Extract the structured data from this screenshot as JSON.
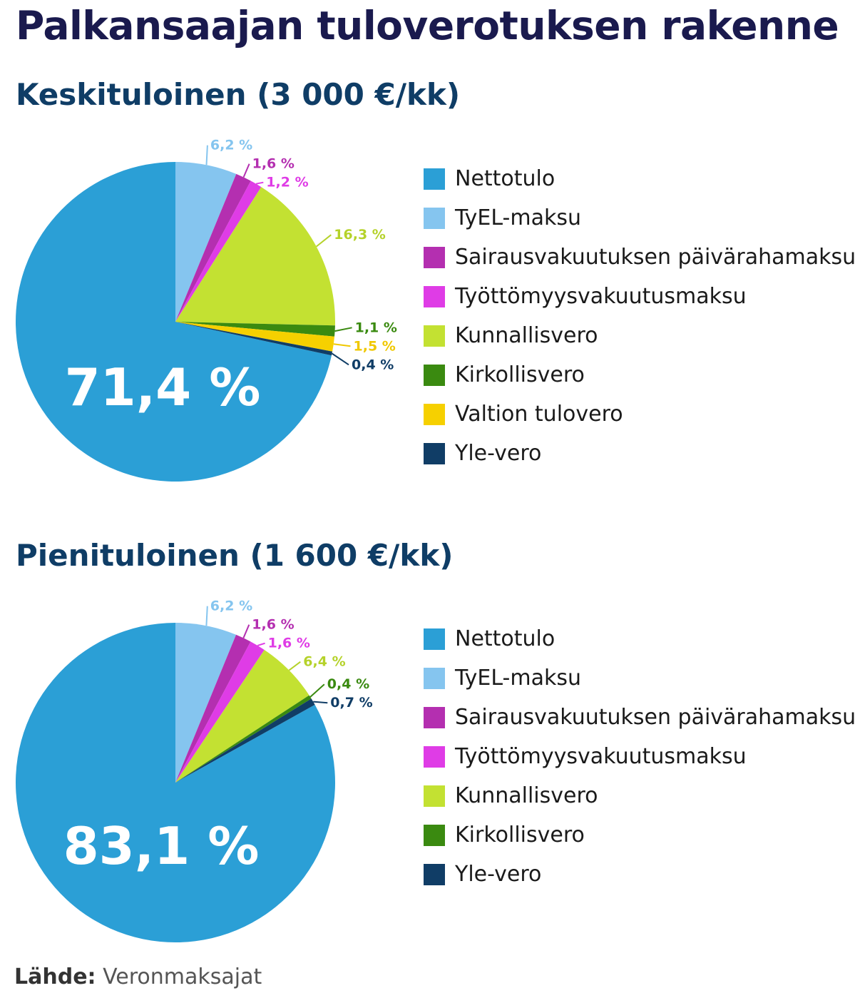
{
  "title": "Palkansaajan tuloverotuksen rakenne",
  "source": {
    "label": "Lähde:",
    "text": "Veronmaksajat"
  },
  "colors": {
    "Nettotulo": "#2b9fd6",
    "TyEL-maksu": "#85c5ef",
    "Sairausvakuutuksen päivärahamaksu": "#b42fb0",
    "Työttömyysvakuutusmaksu": "#df3ce6",
    "Kunnallisvero": "#c3e132",
    "Kirkollisvero": "#3a8a10",
    "Valtion tulovero": "#f6d000",
    "Yle-vero": "#103d66"
  },
  "label_colors": {
    "TyEL-maksu": "#85c5ef",
    "Sairausvakuutuksen päivärahamaksu": "#b42fb0",
    "Työttömyysvakuutusmaksu": "#df3ce6",
    "Kunnallisvero": "#b5d22a",
    "Kirkollisvero": "#3a8a10",
    "Valtion tulovero": "#f0c800",
    "Yle-vero": "#103d66"
  },
  "chart_data": [
    {
      "type": "pie",
      "title": "Keskituloinen (3 000 €/kk)",
      "big_label": "71,4 %",
      "slices": [
        {
          "name": "Nettotulo",
          "value": 71.4,
          "label": "71,4 %"
        },
        {
          "name": "TyEL-maksu",
          "value": 6.2,
          "label": "6,2 %"
        },
        {
          "name": "Sairausvakuutuksen päivärahamaksu",
          "value": 1.6,
          "label": "1,6 %"
        },
        {
          "name": "Työttömyysvakuutusmaksu",
          "value": 1.2,
          "label": "1,2 %"
        },
        {
          "name": "Kunnallisvero",
          "value": 16.3,
          "label": "16,3 %"
        },
        {
          "name": "Kirkollisvero",
          "value": 1.1,
          "label": "1,1 %"
        },
        {
          "name": "Valtion tulovero",
          "value": 1.5,
          "label": "1,5 %"
        },
        {
          "name": "Yle-vero",
          "value": 0.4,
          "label": "0,4 %"
        }
      ],
      "legend": [
        "Nettotulo",
        "TyEL-maksu",
        "Sairausvakuutuksen päivärahamaksu",
        "Työttömyysvakuutusmaksu",
        "Kunnallisvero",
        "Kirkollisvero",
        "Valtion tulovero",
        "Yle-vero"
      ]
    },
    {
      "type": "pie",
      "title": "Pienituloinen (1 600 €/kk)",
      "big_label": "83,1 %",
      "slices": [
        {
          "name": "Nettotulo",
          "value": 83.1,
          "label": "83,1 %"
        },
        {
          "name": "TyEL-maksu",
          "value": 6.2,
          "label": "6,2 %"
        },
        {
          "name": "Sairausvakuutuksen päivärahamaksu",
          "value": 1.6,
          "label": "1,6 %"
        },
        {
          "name": "Työttömyysvakuutusmaksu",
          "value": 1.6,
          "label": "1,6 %"
        },
        {
          "name": "Kunnallisvero",
          "value": 6.4,
          "label": "6,4 %"
        },
        {
          "name": "Kirkollisvero",
          "value": 0.4,
          "label": "0,4 %"
        },
        {
          "name": "Yle-vero",
          "value": 0.7,
          "label": "0,7 %"
        }
      ],
      "legend": [
        "Nettotulo",
        "TyEL-maksu",
        "Sairausvakuutuksen päivärahamaksu",
        "Työttömyysvakuutusmaksu",
        "Kunnallisvero",
        "Kirkollisvero",
        "Yle-vero"
      ]
    }
  ]
}
